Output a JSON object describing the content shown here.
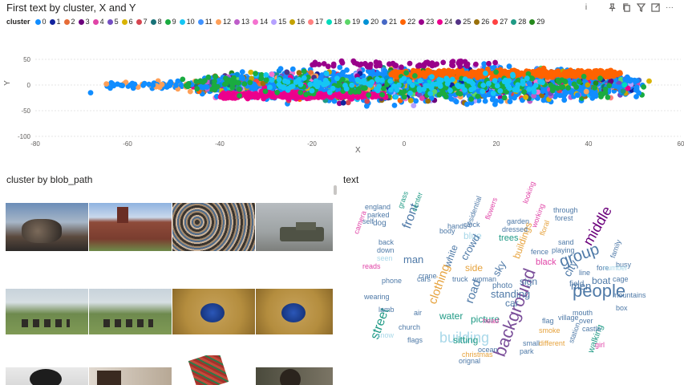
{
  "scatter_visual": {
    "title": "First text by cluster, X and Y",
    "legend_title": "cluster",
    "toolbar_icons": [
      "pin-icon",
      "copy-icon",
      "filter-icon",
      "focus-mode-icon",
      "more-options-icon"
    ],
    "info_icon": "i",
    "legend": [
      {
        "label": "0",
        "color": "#118DFF"
      },
      {
        "label": "1",
        "color": "#12239E"
      },
      {
        "label": "2",
        "color": "#E66C37"
      },
      {
        "label": "3",
        "color": "#6B007B"
      },
      {
        "label": "4",
        "color": "#E044A7"
      },
      {
        "label": "5",
        "color": "#744EC2"
      },
      {
        "label": "6",
        "color": "#D9B300"
      },
      {
        "label": "7",
        "color": "#D64550"
      },
      {
        "label": "8",
        "color": "#197278"
      },
      {
        "label": "9",
        "color": "#1AAB40"
      },
      {
        "label": "10",
        "color": "#15C6F4"
      },
      {
        "label": "11",
        "color": "#4092FF"
      },
      {
        "label": "12",
        "color": "#FFA058"
      },
      {
        "label": "13",
        "color": "#BE5DC9"
      },
      {
        "label": "14",
        "color": "#F472D0"
      },
      {
        "label": "15",
        "color": "#B5A1FF"
      },
      {
        "label": "16",
        "color": "#C4A200"
      },
      {
        "label": "17",
        "color": "#FF8080"
      },
      {
        "label": "18",
        "color": "#00DBBC"
      },
      {
        "label": "19",
        "color": "#5BD667"
      },
      {
        "label": "20",
        "color": "#0091D5"
      },
      {
        "label": "21",
        "color": "#4668C5"
      },
      {
        "label": "22",
        "color": "#FF6300"
      },
      {
        "label": "23",
        "color": "#99008A"
      },
      {
        "label": "24",
        "color": "#EC008C"
      },
      {
        "label": "25",
        "color": "#533285"
      },
      {
        "label": "26",
        "color": "#99700A"
      },
      {
        "label": "27",
        "color": "#FF4141"
      },
      {
        "label": "28",
        "color": "#1F9A85"
      },
      {
        "label": "29",
        "color": "#25891C"
      }
    ]
  },
  "chart_data": {
    "type": "scatter",
    "title": "First text by cluster, X and Y",
    "xlabel": "X",
    "ylabel": "Y",
    "xlim": [
      -80,
      60
    ],
    "ylim": [
      -100,
      100
    ],
    "x_ticks": [
      -80,
      -60,
      -40,
      -20,
      0,
      20,
      40,
      60
    ],
    "y_ticks": [
      -100,
      -50,
      0,
      50
    ],
    "grid": true,
    "legend": "top",
    "series_note_points": "approximately 3000 points spanning x -68 to 58 and y -60 to 65",
    "x_range": [
      -68,
      58
    ],
    "y_range": [
      -60,
      65
    ],
    "dominant_clusters": [
      {
        "name": "0",
        "x_range": [
          -68,
          58
        ],
        "y_range": [
          -60,
          65
        ]
      },
      {
        "name": "22",
        "x_range": [
          -5,
          48
        ],
        "y_range": [
          10,
          40
        ]
      },
      {
        "name": "24",
        "x_range": [
          -40,
          -5
        ],
        "y_range": [
          -30,
          -10
        ]
      },
      {
        "name": "9",
        "x_range": [
          -50,
          45
        ],
        "y_range": [
          -45,
          45
        ]
      }
    ]
  },
  "gallery_visual": {
    "title": "cluster by blob_path"
  },
  "wordcloud_visual": {
    "title": "text",
    "words": [
      {
        "text": "people",
        "color": "#4E79A7",
        "size": 22,
        "x": 714,
        "y": 352,
        "rot": 0
      },
      {
        "text": "background",
        "color": "#7B4F9A",
        "size": 22,
        "x": 612,
        "y": 440,
        "rot": -70
      },
      {
        "text": "building",
        "color": "#A9D8E9",
        "size": 18,
        "x": 548,
        "y": 412,
        "rot": 0
      },
      {
        "text": "group",
        "color": "#4E79A7",
        "size": 20,
        "x": 695,
        "y": 318,
        "rot": -20
      },
      {
        "text": "middle",
        "color": "#6B007B",
        "size": 18,
        "x": 724,
        "y": 300,
        "rot": -60
      },
      {
        "text": "front",
        "color": "#4E79A7",
        "size": 16,
        "x": 500,
        "y": 282,
        "rot": -70
      },
      {
        "text": "street",
        "color": "#1F9A85",
        "size": 16,
        "x": 460,
        "y": 420,
        "rot": -70
      },
      {
        "text": "road",
        "color": "#4E79A7",
        "size": 15,
        "x": 578,
        "y": 375,
        "rot": -70
      },
      {
        "text": "clothing",
        "color": "#E6A23C",
        "size": 15,
        "x": 532,
        "y": 376,
        "rot": -70
      },
      {
        "text": "city",
        "color": "#4E79A7",
        "size": 14,
        "x": 700,
        "y": 340,
        "rot": -60
      },
      {
        "text": "men",
        "color": "#4E79A7",
        "size": 13,
        "x": 712,
        "y": 350,
        "rot": 0
      },
      {
        "text": "boat",
        "color": "#4E79A7",
        "size": 12,
        "x": 738,
        "y": 344,
        "rot": 0
      },
      {
        "text": "man",
        "color": "#4E79A7",
        "size": 13,
        "x": 503,
        "y": 317,
        "rot": 0
      },
      {
        "text": "side",
        "color": "#E6A23C",
        "size": 12,
        "x": 580,
        "y": 328,
        "rot": 0
      },
      {
        "text": "standing",
        "color": "#4E79A7",
        "size": 13,
        "x": 612,
        "y": 360,
        "rot": 0
      },
      {
        "text": "buildings",
        "color": "#E6A23C",
        "size": 12,
        "x": 638,
        "y": 320,
        "rot": -70
      },
      {
        "text": "blue",
        "color": "#A9D8E9",
        "size": 12,
        "x": 578,
        "y": 288,
        "rot": 0
      },
      {
        "text": "white",
        "color": "#4E79A7",
        "size": 12,
        "x": 552,
        "y": 330,
        "rot": -70
      },
      {
        "text": "crowd",
        "color": "#4E79A7",
        "size": 13,
        "x": 572,
        "y": 320,
        "rot": -60
      },
      {
        "text": "sky",
        "color": "#4E79A7",
        "size": 13,
        "x": 612,
        "y": 340,
        "rot": -60
      },
      {
        "text": "car",
        "color": "#4E79A7",
        "size": 12,
        "x": 630,
        "y": 372,
        "rot": 0
      },
      {
        "text": "sign",
        "color": "#4E79A7",
        "size": 12,
        "x": 648,
        "y": 345,
        "rot": 0
      },
      {
        "text": "water",
        "color": "#1F9A85",
        "size": 12,
        "x": 548,
        "y": 388,
        "rot": 0
      },
      {
        "text": "picture",
        "color": "#1F9A85",
        "size": 12,
        "x": 587,
        "y": 392,
        "rot": 0
      },
      {
        "text": "sitting",
        "color": "#1F9A85",
        "size": 12,
        "x": 565,
        "y": 418,
        "rot": 0
      },
      {
        "text": "black",
        "color": "#E044A7",
        "size": 11,
        "x": 668,
        "y": 322,
        "rot": 0
      },
      {
        "text": "walking",
        "color": "#1F9A85",
        "size": 11,
        "x": 732,
        "y": 438,
        "rot": -70
      },
      {
        "text": "trees",
        "color": "#1F9A85",
        "size": 11,
        "x": 622,
        "y": 292,
        "rot": 0
      },
      {
        "text": "photo",
        "color": "#4E79A7",
        "size": 10,
        "x": 614,
        "y": 352,
        "rot": 0
      },
      {
        "text": "field",
        "color": "#4E79A7",
        "size": 10,
        "x": 710,
        "y": 350,
        "rot": 0
      },
      {
        "text": "line",
        "color": "#4E79A7",
        "size": 9,
        "x": 722,
        "y": 336,
        "rot": 0
      },
      {
        "text": "fore",
        "color": "#4E79A7",
        "size": 9,
        "x": 744,
        "y": 330,
        "rot": 0
      },
      {
        "text": "mountains",
        "color": "#4E79A7",
        "size": 9,
        "x": 764,
        "y": 364,
        "rot": 0
      },
      {
        "text": "england",
        "color": "#4E79A7",
        "size": 9,
        "x": 455,
        "y": 254,
        "rot": 0
      },
      {
        "text": "parked",
        "color": "#4E79A7",
        "size": 9,
        "x": 458,
        "y": 264,
        "rot": 0
      },
      {
        "text": "dog",
        "color": "#4E79A7",
        "size": 10,
        "x": 465,
        "y": 274,
        "rot": 0
      },
      {
        "text": "self",
        "color": "#4E79A7",
        "size": 9,
        "x": 452,
        "y": 272,
        "rot": 0
      },
      {
        "text": "camera",
        "color": "#E044A7",
        "size": 9,
        "x": 440,
        "y": 290,
        "rot": -70
      },
      {
        "text": "grass",
        "color": "#1F9A85",
        "size": 9,
        "x": 495,
        "y": 258,
        "rot": -70
      },
      {
        "text": "center",
        "color": "#1F9A85",
        "size": 9,
        "x": 512,
        "y": 262,
        "rot": -70
      },
      {
        "text": "residential",
        "color": "#4E79A7",
        "size": 9,
        "x": 580,
        "y": 282,
        "rot": -70
      },
      {
        "text": "flowers",
        "color": "#E044A7",
        "size": 9,
        "x": 604,
        "y": 272,
        "rot": -70
      },
      {
        "text": "looking",
        "color": "#E044A7",
        "size": 9,
        "x": 651,
        "y": 252,
        "rot": -70
      },
      {
        "text": "through",
        "color": "#4E79A7",
        "size": 9,
        "x": 690,
        "y": 258,
        "rot": 0
      },
      {
        "text": "forest",
        "color": "#4E79A7",
        "size": 9,
        "x": 692,
        "y": 268,
        "rot": 0
      },
      {
        "text": "garden",
        "color": "#4E79A7",
        "size": 9,
        "x": 632,
        "y": 272,
        "rot": 0
      },
      {
        "text": "dressed",
        "color": "#4E79A7",
        "size": 9,
        "x": 626,
        "y": 282,
        "rot": 0
      },
      {
        "text": "working",
        "color": "#E044A7",
        "size": 9,
        "x": 662,
        "y": 282,
        "rot": -70
      },
      {
        "text": "floral",
        "color": "#E6A23C",
        "size": 9,
        "x": 672,
        "y": 292,
        "rot": -70
      },
      {
        "text": "playing",
        "color": "#4E79A7",
        "size": 9,
        "x": 688,
        "y": 308,
        "rot": 0
      },
      {
        "text": "sand",
        "color": "#4E79A7",
        "size": 9,
        "x": 696,
        "y": 298,
        "rot": 0
      },
      {
        "text": "family",
        "color": "#4E79A7",
        "size": 9,
        "x": 760,
        "y": 320,
        "rot": -70
      },
      {
        "text": "busy",
        "color": "#4E79A7",
        "size": 9,
        "x": 768,
        "y": 326,
        "rot": 0
      },
      {
        "text": "number",
        "color": "#A9D8E9",
        "size": 9,
        "x": 752,
        "y": 330,
        "rot": 0
      },
      {
        "text": "cage",
        "color": "#4E79A7",
        "size": 9,
        "x": 764,
        "y": 344,
        "rot": 0
      },
      {
        "text": "fence",
        "color": "#4E79A7",
        "size": 9,
        "x": 662,
        "y": 310,
        "rot": 0
      },
      {
        "text": "hands",
        "color": "#4E79A7",
        "size": 9,
        "x": 558,
        "y": 278,
        "rot": 0
      },
      {
        "text": "clock",
        "color": "#4E79A7",
        "size": 9,
        "x": 578,
        "y": 276,
        "rot": 0
      },
      {
        "text": "body",
        "color": "#4E79A7",
        "size": 9,
        "x": 548,
        "y": 284,
        "rot": 0
      },
      {
        "text": "back",
        "color": "#4E79A7",
        "size": 9,
        "x": 472,
        "y": 298,
        "rot": 0
      },
      {
        "text": "down",
        "color": "#4E79A7",
        "size": 9,
        "x": 470,
        "y": 308,
        "rot": 0
      },
      {
        "text": "seen",
        "color": "#A9D8E9",
        "size": 9,
        "x": 470,
        "y": 318,
        "rot": 0
      },
      {
        "text": "reads",
        "color": "#E044A7",
        "size": 9,
        "x": 452,
        "y": 328,
        "rot": 0
      },
      {
        "text": "phone",
        "color": "#4E79A7",
        "size": 9,
        "x": 476,
        "y": 346,
        "rot": 0
      },
      {
        "text": "cars",
        "color": "#4E79A7",
        "size": 9,
        "x": 520,
        "y": 344,
        "rot": 0
      },
      {
        "text": "crane",
        "color": "#4E79A7",
        "size": 9,
        "x": 522,
        "y": 340,
        "rot": 0
      },
      {
        "text": "truck",
        "color": "#4E79A7",
        "size": 9,
        "x": 564,
        "y": 344,
        "rot": 0
      },
      {
        "text": "woman",
        "color": "#4E79A7",
        "size": 9,
        "x": 590,
        "y": 344,
        "rot": 0
      },
      {
        "text": "wearing",
        "color": "#4E79A7",
        "size": 9,
        "x": 454,
        "y": 366,
        "rot": 0
      },
      {
        "text": "lamb",
        "color": "#4E79A7",
        "size": 9,
        "x": 472,
        "y": 382,
        "rot": 0
      },
      {
        "text": "air",
        "color": "#4E79A7",
        "size": 9,
        "x": 516,
        "y": 386,
        "rot": 0
      },
      {
        "text": "church",
        "color": "#4E79A7",
        "size": 9,
        "x": 497,
        "y": 404,
        "rot": 0
      },
      {
        "text": "flags",
        "color": "#4E79A7",
        "size": 9,
        "x": 508,
        "y": 420,
        "rot": 0
      },
      {
        "text": "snow",
        "color": "#A9D8E9",
        "size": 9,
        "x": 470,
        "y": 414,
        "rot": 0
      },
      {
        "text": "head",
        "color": "#E044A7",
        "size": 9,
        "x": 602,
        "y": 396,
        "rot": 0
      },
      {
        "text": "ocean",
        "color": "#4E79A7",
        "size": 9,
        "x": 596,
        "y": 432,
        "rot": 0
      },
      {
        "text": "christmas",
        "color": "#E6A23C",
        "size": 9,
        "x": 576,
        "y": 438,
        "rot": 0
      },
      {
        "text": "orignal",
        "color": "#4E79A7",
        "size": 9,
        "x": 572,
        "y": 446,
        "rot": 0
      },
      {
        "text": "small",
        "color": "#4E79A7",
        "size": 9,
        "x": 652,
        "y": 424,
        "rot": 0
      },
      {
        "text": "park",
        "color": "#4E79A7",
        "size": 9,
        "x": 648,
        "y": 434,
        "rot": 0
      },
      {
        "text": "different",
        "color": "#E6A23C",
        "size": 9,
        "x": 672,
        "y": 424,
        "rot": 0
      },
      {
        "text": "smoke",
        "color": "#E6A23C",
        "size": 9,
        "x": 672,
        "y": 408,
        "rot": 0
      },
      {
        "text": "flag",
        "color": "#4E79A7",
        "size": 9,
        "x": 676,
        "y": 396,
        "rot": 0
      },
      {
        "text": "station",
        "color": "#4E79A7",
        "size": 9,
        "x": 708,
        "y": 426,
        "rot": -70
      },
      {
        "text": "castle",
        "color": "#4E79A7",
        "size": 9,
        "x": 726,
        "y": 406,
        "rot": 0
      },
      {
        "text": "mouth",
        "color": "#4E79A7",
        "size": 9,
        "x": 714,
        "y": 386,
        "rot": 0
      },
      {
        "text": "over",
        "color": "#4E79A7",
        "size": 9,
        "x": 722,
        "y": 396,
        "rot": 0
      },
      {
        "text": "box",
        "color": "#4E79A7",
        "size": 9,
        "x": 768,
        "y": 380,
        "rot": 0
      },
      {
        "text": "girl",
        "color": "#E044A7",
        "size": 9,
        "x": 742,
        "y": 426,
        "rot": 0
      },
      {
        "text": "village",
        "color": "#4E79A7",
        "size": 9,
        "x": 696,
        "y": 392,
        "rot": 0
      }
    ]
  }
}
